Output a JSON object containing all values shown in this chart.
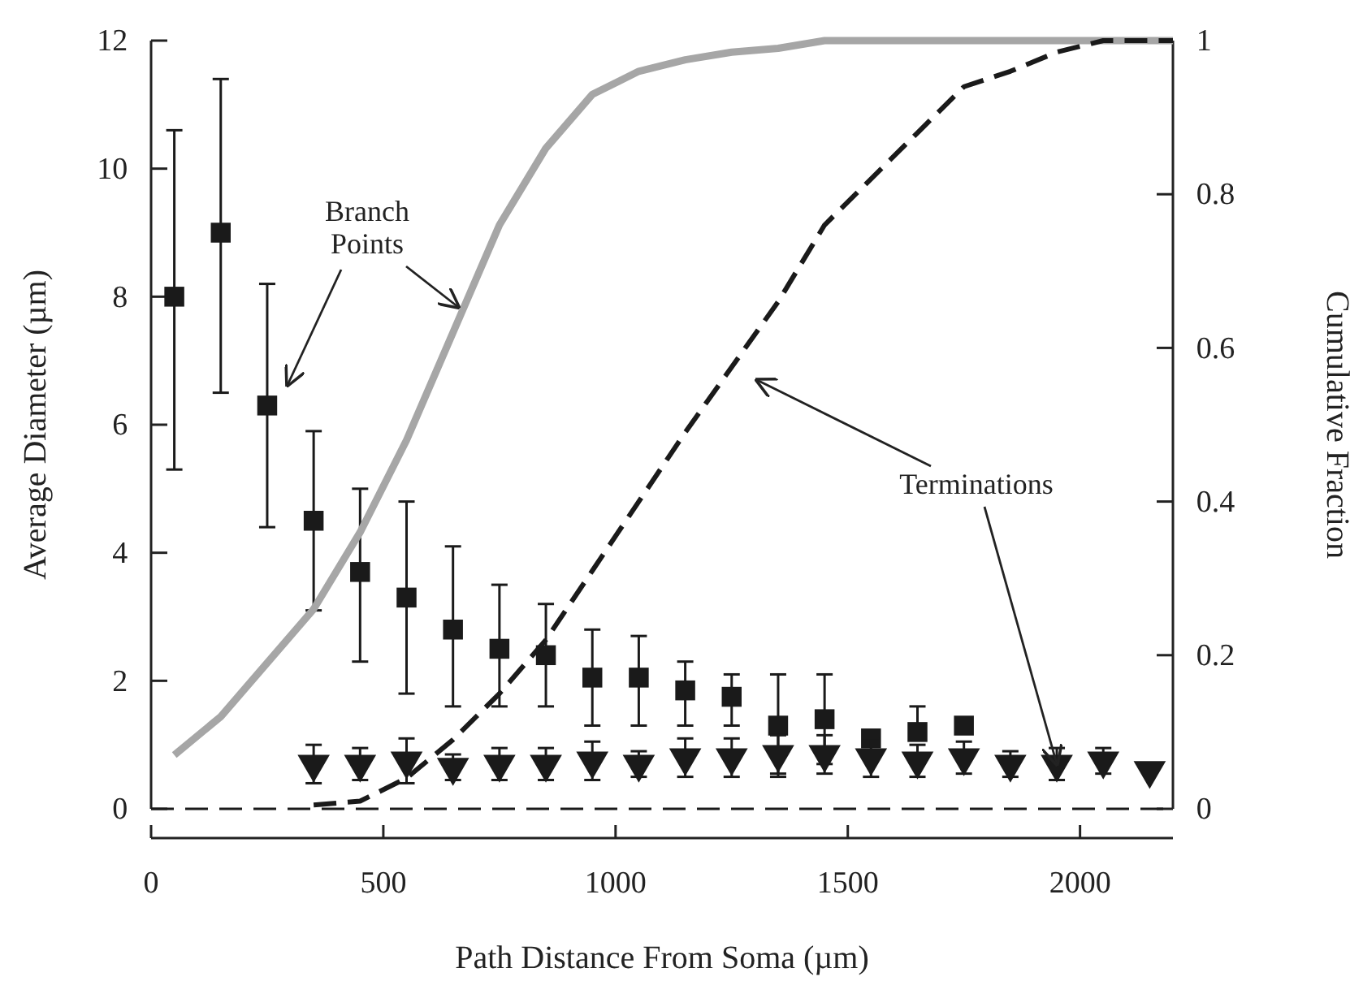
{
  "chart_data": {
    "type": "scatter",
    "xlabel": "Path Distance From Soma  (µm)",
    "ylabel": "Average Diameter  (µm)",
    "y2label": "Cumulative Fraction",
    "xlim": [
      0,
      2200
    ],
    "xticks": [
      0,
      500,
      1000,
      1500,
      2000
    ],
    "ylim": [
      0,
      12
    ],
    "yticks": [
      0,
      2,
      4,
      6,
      8,
      10,
      12
    ],
    "y2lim": [
      0,
      1
    ],
    "y2ticks": [
      0,
      0.2,
      0.4,
      0.6,
      0.8,
      1
    ],
    "series": [
      {
        "marker": "square",
        "color": "#1a1a1a",
        "x": [
          50,
          150,
          250,
          350,
          450,
          550,
          650,
          750,
          850,
          950,
          1050,
          1150,
          1250,
          1350,
          1450,
          1550,
          1650,
          1750
        ],
        "values": [
          8.0,
          9.0,
          6.3,
          4.5,
          3.7,
          3.3,
          2.8,
          2.5,
          2.4,
          2.05,
          2.05,
          1.85,
          1.75,
          1.3,
          1.4,
          1.1,
          1.2,
          1.3
        ],
        "errors": [
          [
            5.3,
            10.6
          ],
          [
            6.5,
            11.4
          ],
          [
            4.4,
            8.2
          ],
          [
            3.1,
            5.9
          ],
          [
            2.3,
            5.0
          ],
          [
            1.8,
            4.8
          ],
          [
            1.6,
            4.1
          ],
          [
            1.6,
            3.5
          ],
          [
            1.6,
            3.2
          ],
          [
            1.3,
            2.8
          ],
          [
            1.3,
            2.7
          ],
          [
            1.3,
            2.3
          ],
          [
            1.3,
            2.1
          ],
          [
            0.5,
            2.1
          ],
          [
            0.7,
            2.1
          ],
          null,
          [
            1.2,
            1.6
          ],
          null
        ]
      },
      {
        "marker": "triangle",
        "color": "#1a1a1a",
        "x": [
          350,
          450,
          550,
          650,
          750,
          850,
          950,
          1050,
          1150,
          1250,
          1350,
          1450,
          1550,
          1650,
          1750,
          1850,
          1950,
          2050,
          2150
        ],
        "values": [
          0.7,
          0.7,
          0.75,
          0.65,
          0.7,
          0.7,
          0.75,
          0.7,
          0.8,
          0.8,
          0.85,
          0.85,
          0.8,
          0.75,
          0.8,
          0.7,
          0.7,
          0.75,
          0.6
        ],
        "errors": [
          0.3,
          0.25,
          0.35,
          0.2,
          0.25,
          0.25,
          0.3,
          0.2,
          0.3,
          0.3,
          0.3,
          0.3,
          0.3,
          0.25,
          0.25,
          0.2,
          0.25,
          0.2,
          null
        ]
      },
      {
        "type": "line",
        "axis": "y2",
        "color": "#a6a6a6",
        "line_style": "solid",
        "x": [
          50,
          150,
          250,
          350,
          450,
          550,
          650,
          750,
          850,
          950,
          1050,
          1150,
          1250,
          1350,
          1450,
          1550,
          1700,
          1900,
          2200
        ],
        "values": [
          0.07,
          0.12,
          0.19,
          0.26,
          0.36,
          0.48,
          0.62,
          0.76,
          0.86,
          0.93,
          0.96,
          0.975,
          0.985,
          0.99,
          1.0,
          1.0,
          1.0,
          1.0,
          1.0
        ]
      },
      {
        "type": "line",
        "axis": "y2",
        "color": "#1a1a1a",
        "line_style": "dashed",
        "x": [
          350,
          450,
          550,
          650,
          750,
          850,
          950,
          1050,
          1150,
          1250,
          1350,
          1450,
          1550,
          1650,
          1750,
          1850,
          1950,
          2050,
          2200
        ],
        "values": [
          0.005,
          0.01,
          0.04,
          0.09,
          0.15,
          0.22,
          0.31,
          0.4,
          0.49,
          0.575,
          0.66,
          0.76,
          0.82,
          0.88,
          0.94,
          0.96,
          0.985,
          1.0,
          1.0
        ]
      }
    ],
    "ref_lines": [
      {
        "axis": "y",
        "value": 0,
        "color": "#1a1a1a",
        "line_style": "dashed"
      }
    ],
    "annotations": [
      "Branch\nPoints",
      {
        "text": "Terminations",
        "x": 1950,
        "y": 0.7
      }
    ],
    "grid": false
  }
}
